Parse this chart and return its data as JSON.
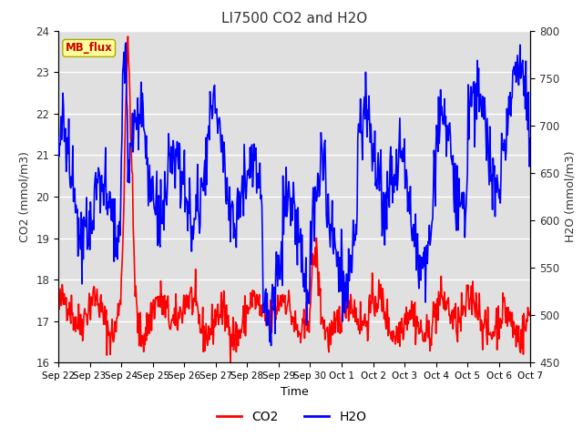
{
  "title": "LI7500 CO2 and H2O",
  "xlabel": "Time",
  "ylabel_left": "CO2 (mmol/m3)",
  "ylabel_right": "H2O (mmol/m3)",
  "ylim_left": [
    16.0,
    24.0
  ],
  "ylim_right": [
    450,
    800
  ],
  "yticks_left": [
    16.0,
    17.0,
    18.0,
    19.0,
    20.0,
    21.0,
    22.0,
    23.0,
    24.0
  ],
  "yticks_right": [
    450,
    500,
    550,
    600,
    650,
    700,
    750,
    800
  ],
  "xtick_labels": [
    "Sep 22",
    "Sep 23",
    "Sep 24",
    "Sep 25",
    "Sep 26",
    "Sep 27",
    "Sep 28",
    "Sep 29",
    "Sep 30",
    "Oct 1",
    "Oct 2",
    "Oct 3",
    "Oct 4",
    "Oct 5",
    "Oct 6",
    "Oct 7"
  ],
  "co2_color": "#ff0000",
  "h2o_color": "#0000ff",
  "bg_color": "#e0e0e0",
  "fig_bg_color": "#ffffff",
  "mb_flux_label": "MB_flux",
  "mb_flux_bg": "#ffff99",
  "mb_flux_fg": "#cc0000",
  "legend_co2": "CO2",
  "legend_h2o": "H2O",
  "line_width": 1.2,
  "n_points": 720,
  "seed": 42
}
